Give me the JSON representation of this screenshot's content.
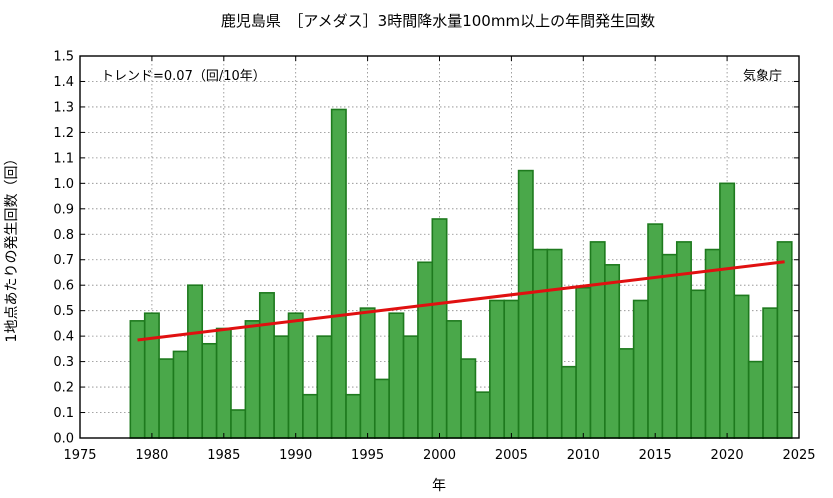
{
  "chart_data": {
    "type": "bar",
    "title": "鹿児島県　［アメダス］3時間降水量100mm以上の年間発生回数",
    "xlabel": "年",
    "ylabel": "1地点あたりの発生回数（回）",
    "trend_label": "トレンド=0.07（回/10年）",
    "source_label": "気象庁",
    "xlim": [
      1975,
      2025
    ],
    "ylim": [
      0,
      1.5
    ],
    "x_ticks": [
      "1975",
      "1980",
      "1985",
      "1990",
      "1995",
      "2000",
      "2005",
      "2010",
      "2015",
      "2020",
      "2025"
    ],
    "y_ticks": [
      "0.0",
      "0.1",
      "0.2",
      "0.3",
      "0.4",
      "0.5",
      "0.6",
      "0.7",
      "0.8",
      "0.9",
      "1.0",
      "1.1",
      "1.2",
      "1.3",
      "1.4",
      "1.5"
    ],
    "x": [
      1979,
      1980,
      1981,
      1982,
      1983,
      1984,
      1985,
      1986,
      1987,
      1988,
      1989,
      1990,
      1991,
      1992,
      1993,
      1994,
      1995,
      1996,
      1997,
      1998,
      1999,
      2000,
      2001,
      2002,
      2003,
      2004,
      2005,
      2006,
      2007,
      2008,
      2009,
      2010,
      2011,
      2012,
      2013,
      2014,
      2015,
      2016,
      2017,
      2018,
      2019,
      2020,
      2021,
      2022,
      2023,
      2024
    ],
    "values": [
      0.46,
      0.49,
      0.31,
      0.34,
      0.6,
      0.37,
      0.43,
      0.11,
      0.46,
      0.57,
      0.4,
      0.49,
      0.17,
      0.4,
      1.29,
      0.17,
      0.51,
      0.23,
      0.49,
      0.4,
      0.69,
      0.86,
      0.46,
      0.31,
      0.18,
      0.54,
      0.54,
      1.05,
      0.74,
      0.74,
      0.28,
      0.59,
      0.77,
      0.68,
      0.35,
      0.54,
      0.84,
      0.72,
      0.77,
      0.58,
      0.74,
      1.0,
      0.56,
      0.3,
      0.51,
      0.77
    ],
    "trend": {
      "x": [
        1979,
        2024
      ],
      "y": [
        0.385,
        0.692
      ]
    },
    "colors": {
      "bar_fill": "#4aa84a",
      "bar_edge": "#1e7a1e",
      "trend": "#e01010"
    },
    "grid": true
  }
}
